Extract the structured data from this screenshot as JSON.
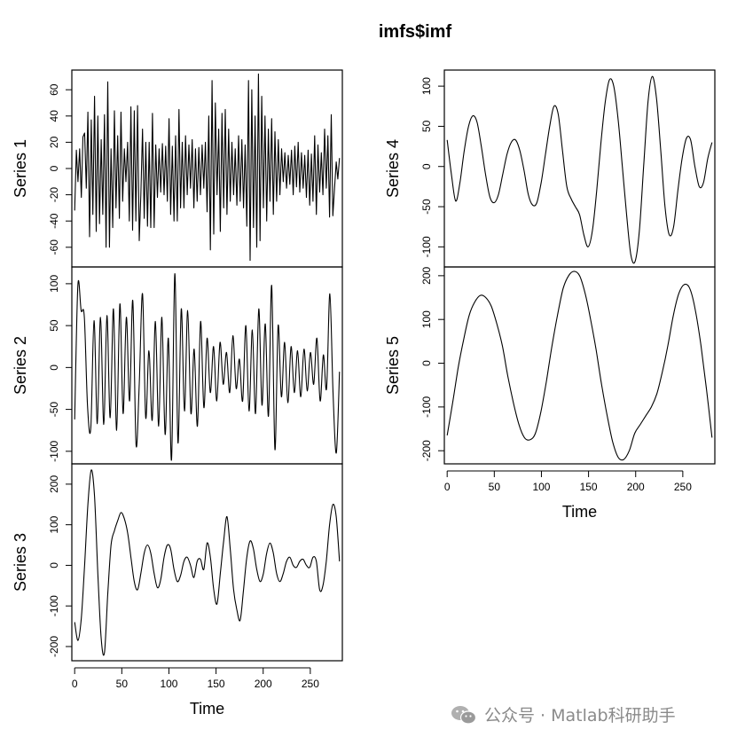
{
  "chart_data": {
    "type": "line",
    "title": "imfs$imf",
    "xlabel": "Time",
    "x_ticks": [
      "0",
      "50",
      "100",
      "150",
      "200",
      "250"
    ],
    "xlim": [
      -3,
      284
    ],
    "series_panels": [
      {
        "name": "Series 1",
        "column": 0,
        "ylim": [
          -75,
          75
        ],
        "y_ticks": [
          "-60",
          "-40",
          "-20",
          "0",
          "20",
          "40",
          "60"
        ],
        "x_start": 0,
        "y": [
          -32,
          14,
          -10,
          15,
          -22,
          24,
          27,
          -15,
          43,
          -52,
          37,
          -35,
          55,
          -48,
          40,
          -42,
          22,
          -35,
          41,
          -60,
          66,
          -60,
          15,
          -45,
          44,
          -30,
          25,
          -38,
          43,
          -25,
          15,
          -10,
          20,
          -40,
          47,
          -47,
          44,
          -40,
          48,
          -55,
          -20,
          30,
          -38,
          20,
          -44,
          20,
          -45,
          42,
          -45,
          18,
          -22,
          15,
          -18,
          19,
          -20,
          17,
          -25,
          38,
          -35,
          17,
          -40,
          25,
          -40,
          45,
          -30,
          20,
          -30,
          25,
          -20,
          18,
          -15,
          22,
          -30,
          15,
          -25,
          16,
          -20,
          18,
          -15,
          20,
          -33,
          40,
          -62,
          67,
          -50,
          50,
          -20,
          30,
          -48,
          42,
          -30,
          45,
          -35,
          30,
          -25,
          20,
          -20,
          15,
          -28,
          25,
          -25,
          22,
          -30,
          18,
          -44,
          67,
          -70,
          60,
          -45,
          40,
          -60,
          72,
          -55,
          55,
          -30,
          40,
          -40,
          30,
          -25,
          38,
          -35,
          28,
          -25,
          22,
          -20,
          15,
          -10,
          12,
          -15,
          10,
          -12,
          14,
          -20,
          17,
          -14,
          20,
          -18,
          12,
          -15,
          10,
          -22,
          14,
          -28,
          11,
          -25,
          25,
          -35,
          18,
          -18,
          12,
          -20,
          30,
          -15,
          25,
          -37,
          41,
          -36,
          -15,
          5,
          -8,
          8
        ],
        "x_end": 281
      },
      {
        "name": "Series 2",
        "column": 0,
        "ylim": [
          -115,
          120
        ],
        "y_ticks": [
          "-100",
          "-50",
          "0",
          "50",
          "100"
        ],
        "x_start": 0,
        "y": [
          -62,
          98,
          68,
          60,
          -48,
          -72,
          56,
          -67,
          60,
          -68,
          62,
          -60,
          70,
          -75,
          76,
          -55,
          60,
          -40,
          80,
          -92,
          -20,
          88,
          -60,
          20,
          -63,
          55,
          -70,
          60,
          -80,
          35,
          -110,
          112,
          -90,
          70,
          -52,
          68,
          -55,
          22,
          -70,
          55,
          -48,
          35,
          -30,
          25,
          -40,
          30,
          -20,
          18,
          -30,
          38,
          -25,
          10,
          -40,
          50,
          -52,
          45,
          -55,
          70,
          -45,
          52,
          -58,
          98,
          -98,
          50,
          -35,
          30,
          -42,
          25,
          -30,
          20,
          -35,
          22,
          -28,
          18,
          -20,
          35,
          -40,
          15,
          -25,
          88,
          -30,
          -102,
          -5
        ],
        "x_end": 281
      },
      {
        "name": "Series 3",
        "column": 0,
        "ylim": [
          -235,
          250
        ],
        "y_ticks": [
          "-200",
          "-100",
          "0",
          "100",
          "200"
        ],
        "x_start": 0,
        "y": [
          -140,
          -185,
          -130,
          0,
          150,
          235,
          170,
          -20,
          -180,
          -215,
          -70,
          50,
          85,
          110,
          130,
          115,
          80,
          20,
          -40,
          -60,
          -20,
          30,
          50,
          30,
          -20,
          -55,
          -35,
          20,
          50,
          40,
          -10,
          -40,
          -25,
          10,
          20,
          0,
          -30,
          10,
          15,
          -10,
          55,
          20,
          -60,
          -95,
          -20,
          60,
          120,
          40,
          -60,
          -110,
          -135,
          -60,
          20,
          60,
          40,
          -10,
          -40,
          -20,
          30,
          55,
          30,
          -20,
          -40,
          -20,
          10,
          20,
          0,
          -5,
          10,
          15,
          0,
          -5,
          20,
          10,
          -60,
          -50,
          10,
          100,
          150,
          120,
          10
        ],
        "x_end": 281
      },
      {
        "name": "Series 4",
        "column": 1,
        "ylim": [
          -125,
          120
        ],
        "y_ticks": [
          "-100",
          "-50",
          "0",
          "50",
          "100"
        ],
        "x_start": 0,
        "y": [
          33,
          -10,
          -43,
          -20,
          20,
          50,
          63,
          55,
          25,
          -10,
          -38,
          -45,
          -35,
          -10,
          15,
          30,
          33,
          20,
          -5,
          -35,
          -48,
          -45,
          -20,
          15,
          50,
          75,
          65,
          20,
          -25,
          -40,
          -50,
          -60,
          -85,
          -100,
          -80,
          -30,
          30,
          80,
          108,
          100,
          60,
          0,
          -60,
          -110,
          -118,
          -80,
          0,
          80,
          112,
          85,
          20,
          -50,
          -85,
          -75,
          -30,
          10,
          35,
          33,
          0,
          -25,
          -20,
          10,
          30
        ],
        "x_end": 281
      },
      {
        "name": "Series 5",
        "column": 1,
        "ylim": [
          -230,
          220
        ],
        "y_ticks": [
          "-200",
          "-100",
          "0",
          "100",
          "200"
        ],
        "x_start": 0,
        "y": [
          -165,
          -90,
          -10,
          55,
          110,
          140,
          155,
          150,
          130,
          90,
          40,
          -30,
          -90,
          -140,
          -170,
          -175,
          -160,
          -110,
          -40,
          40,
          110,
          170,
          200,
          210,
          200,
          160,
          100,
          30,
          -50,
          -120,
          -180,
          -215,
          -220,
          -200,
          -160,
          -140,
          -120,
          -100,
          -70,
          -20,
          40,
          110,
          160,
          180,
          170,
          120,
          40,
          -60,
          -170
        ],
        "x_end": 281
      }
    ]
  },
  "watermark": {
    "text": "公众号 · Matlab科研助手",
    "icon": "wechat-icon"
  }
}
